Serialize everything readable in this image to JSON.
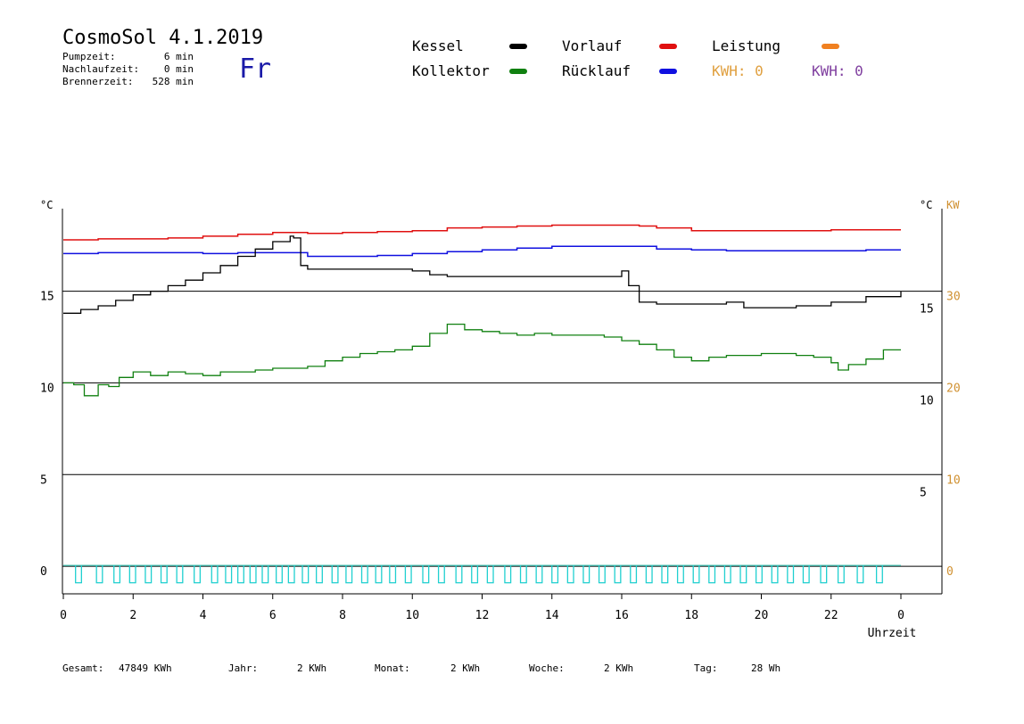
{
  "header": {
    "title": "CosmoSol 4.1.2019",
    "day": "Fr",
    "stats": [
      {
        "label": "Pumpzeit:",
        "value": "6 min"
      },
      {
        "label": "Nachlaufzeit:",
        "value": "0 min"
      },
      {
        "label": "Brennerzeit:",
        "value": "528 min"
      }
    ]
  },
  "legend": {
    "items": [
      {
        "label": "Kessel",
        "color": "#000000"
      },
      {
        "label": "Vorlauf",
        "color": "#e01010"
      },
      {
        "label": "Leistung",
        "color": "#f08020"
      },
      {
        "label": "Kollektor",
        "color": "#108010"
      },
      {
        "label": "Rücklauf",
        "color": "#1010e0"
      }
    ],
    "kwh": [
      {
        "label": "KWH: 0",
        "color": "#e0a040"
      },
      {
        "label": "KWH: 0",
        "color": "#8040a0"
      }
    ]
  },
  "footer": [
    {
      "label": "Gesamt:",
      "value": "47849 KWh"
    },
    {
      "label": "Jahr:",
      "value": "2 KWh"
    },
    {
      "label": "Monat:",
      "value": "2 KWh"
    },
    {
      "label": "Woche:",
      "value": "2 KWh"
    },
    {
      "label": "Tag:",
      "value": "28 Wh"
    }
  ],
  "chart_data": {
    "type": "line",
    "xlabel": "Uhrzeit",
    "x_ticks": [
      "0",
      "2",
      "4",
      "6",
      "8",
      "10",
      "12",
      "14",
      "16",
      "18",
      "20",
      "22",
      "0"
    ],
    "left_axis": {
      "unit": "°C",
      "ticks": [
        0,
        5,
        10,
        15
      ],
      "ylim": [
        -1.5,
        19.5
      ]
    },
    "right_axis_1": {
      "unit": "°C",
      "ticks": [
        5,
        10,
        15
      ]
    },
    "right_axis_2": {
      "unit": "KW",
      "ticks": [
        0,
        10,
        20,
        30
      ],
      "color": "#d09030"
    },
    "grid": true,
    "series": [
      {
        "name": "Vorlauf",
        "color": "#e01010",
        "x": [
          0,
          1,
          2,
          3,
          4,
          5,
          6,
          7,
          8,
          9,
          10,
          11,
          12,
          13,
          14,
          15,
          16,
          16.5,
          17,
          18,
          19,
          20,
          21,
          22,
          23,
          24
        ],
        "y": [
          17.8,
          17.85,
          17.85,
          17.9,
          18.0,
          18.1,
          18.2,
          18.15,
          18.2,
          18.25,
          18.3,
          18.45,
          18.5,
          18.55,
          18.6,
          18.6,
          18.6,
          18.55,
          18.45,
          18.3,
          18.3,
          18.3,
          18.3,
          18.35,
          18.35,
          18.35
        ]
      },
      {
        "name": "Rücklauf",
        "color": "#1010e0",
        "x": [
          0,
          1,
          2,
          3,
          4,
          5,
          6,
          7,
          8,
          9,
          10,
          11,
          12,
          13,
          14,
          15,
          16,
          17,
          18,
          19,
          20,
          21,
          22,
          23,
          24
        ],
        "y": [
          17.05,
          17.1,
          17.1,
          17.1,
          17.05,
          17.1,
          17.1,
          16.9,
          16.9,
          16.95,
          17.05,
          17.15,
          17.25,
          17.35,
          17.45,
          17.45,
          17.45,
          17.3,
          17.25,
          17.2,
          17.2,
          17.2,
          17.2,
          17.25,
          17.25
        ]
      },
      {
        "name": "Kessel",
        "color": "#000000",
        "x": [
          0,
          0.5,
          1,
          1.5,
          2,
          2.5,
          3,
          3.5,
          4,
          4.5,
          5,
          5.5,
          6,
          6.5,
          6.6,
          6.8,
          7,
          8,
          9,
          10,
          10.5,
          11,
          12,
          13,
          14,
          15,
          15.5,
          16,
          16.2,
          16.5,
          17,
          18,
          19,
          19.5,
          20,
          21,
          22,
          23,
          24
        ],
        "y": [
          13.8,
          14.0,
          14.2,
          14.5,
          14.8,
          15.0,
          15.3,
          15.6,
          16.0,
          16.4,
          16.9,
          17.3,
          17.7,
          18.0,
          17.9,
          16.4,
          16.2,
          16.2,
          16.2,
          16.1,
          15.9,
          15.8,
          15.8,
          15.8,
          15.8,
          15.8,
          15.8,
          16.1,
          15.3,
          14.4,
          14.3,
          14.3,
          14.4,
          14.1,
          14.1,
          14.2,
          14.4,
          14.7,
          15.0
        ]
      },
      {
        "name": "Kollektor",
        "color": "#108010",
        "x": [
          0,
          0.3,
          0.6,
          1,
          1.3,
          1.6,
          2,
          2.5,
          3,
          3.5,
          4,
          4.5,
          5,
          5.5,
          6,
          6.5,
          7,
          7.5,
          8,
          8.5,
          9,
          9.5,
          10,
          10.5,
          11,
          11.5,
          12,
          12.5,
          13,
          13.5,
          14,
          14.5,
          15,
          15.5,
          16,
          16.5,
          17,
          17.5,
          18,
          18.5,
          19,
          19.5,
          20,
          20.5,
          21,
          21.5,
          22,
          22.2,
          22.5,
          23,
          23.5,
          24
        ],
        "y": [
          10.0,
          9.9,
          9.3,
          9.9,
          9.8,
          10.3,
          10.6,
          10.4,
          10.6,
          10.5,
          10.4,
          10.6,
          10.6,
          10.7,
          10.8,
          10.8,
          10.9,
          11.2,
          11.4,
          11.6,
          11.7,
          11.8,
          12.0,
          12.7,
          13.2,
          12.9,
          12.8,
          12.7,
          12.6,
          12.7,
          12.6,
          12.6,
          12.6,
          12.5,
          12.3,
          12.1,
          11.8,
          11.4,
          11.2,
          11.4,
          11.5,
          11.5,
          11.6,
          11.6,
          11.5,
          11.4,
          11.1,
          10.7,
          11.0,
          11.3,
          11.8,
          11.8
        ]
      },
      {
        "name": "Leistung",
        "color": "#f08020",
        "x": [
          0,
          24
        ],
        "y": [
          0.05,
          0.05
        ]
      },
      {
        "name": "",
        "color": "#20d0d0",
        "pulse_times": [
          0.35,
          0.95,
          1.45,
          1.9,
          2.35,
          2.8,
          3.25,
          3.75,
          4.25,
          4.65,
          5.0,
          5.35,
          5.7,
          6.1,
          6.45,
          6.85,
          7.25,
          7.7,
          8.1,
          8.55,
          8.95,
          9.35,
          9.8,
          10.3,
          10.75,
          11.25,
          11.7,
          12.15,
          12.65,
          13.1,
          13.55,
          14.0,
          14.45,
          14.9,
          15.35,
          15.8,
          16.25,
          16.7,
          17.15,
          17.6,
          18.05,
          18.5,
          18.95,
          19.4,
          19.85,
          20.3,
          20.75,
          21.2,
          21.7,
          22.2,
          22.75,
          23.3
        ],
        "pulse_width_h": 0.17
      }
    ]
  }
}
